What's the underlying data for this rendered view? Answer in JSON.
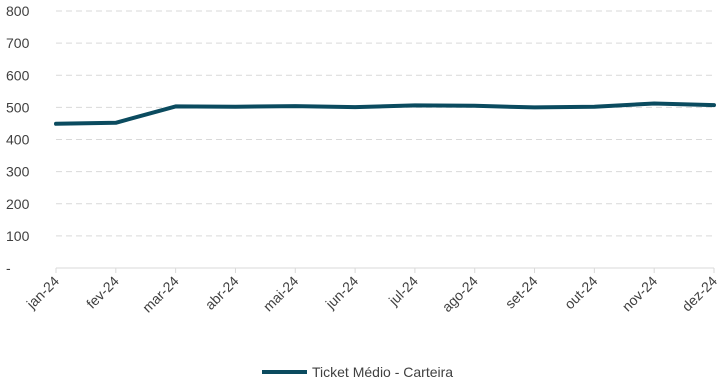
{
  "chart_data": {
    "type": "line",
    "categories": [
      "jan-24",
      "fev-24",
      "mar-24",
      "abr-24",
      "mai-24",
      "jun-24",
      "jul-24",
      "ago-24",
      "set-24",
      "out-24",
      "nov-24",
      "dez-24"
    ],
    "series": [
      {
        "name": "Ticket Médio - Carteira",
        "values": [
          449,
          452,
          503,
          502,
          504,
          501,
          506,
          505,
          500,
          502,
          512,
          507
        ],
        "color": "#0b4b5f"
      }
    ],
    "ylim": [
      0,
      800
    ],
    "yticks": [
      0,
      100,
      200,
      300,
      400,
      500,
      600,
      700,
      800
    ],
    "ytick_labels": [
      "-",
      "100",
      "200",
      "300",
      "400",
      "500",
      "600",
      "700",
      "800"
    ],
    "grid": true,
    "legend_position": "bottom-center",
    "grid_color": "#d9d9d9",
    "axis_color": "#d9d9d9"
  }
}
